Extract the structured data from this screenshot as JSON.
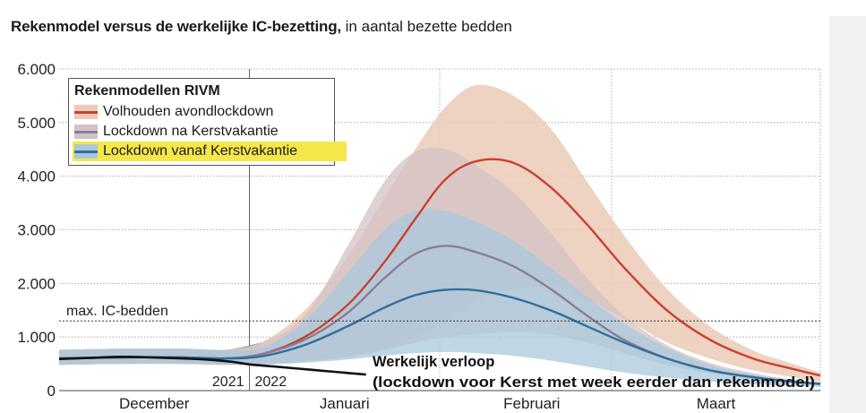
{
  "title_bold": "Rekenmodel versus de werkelijke IC-bezetting,",
  "title_rest": "in aantal bezette bedden",
  "colors": {
    "volhouden": "#c9412e",
    "volhouden_band": "#ebcab7",
    "kerst_na": "#8a7e94",
    "kerst_na_band": "#d3c3c6",
    "kerst_vanaf": "#2f6f9d",
    "kerst_vanaf_band": "#aac8dc",
    "actual": "#111111",
    "highlight": "#f5e64a"
  },
  "legend": {
    "title": "Rekenmodellen RIVM",
    "items": [
      {
        "label": "Volhouden avondlockdown",
        "color": "#c9412e",
        "band": "#ebcab7",
        "highlight": false
      },
      {
        "label": "Lockdown na Kerstvakantie",
        "color": "#8a7e94",
        "band": "#d3c3c6",
        "highlight": false
      },
      {
        "label": "Lockdown vanaf Kerstvakantie",
        "color": "#2f6f9d",
        "band": "#aac8dc",
        "highlight": true
      }
    ]
  },
  "annotations": {
    "max_beds_label": "max. IC-bedden",
    "year_left": "2021",
    "year_right": "2022",
    "actual_title": "Werkelijk verloop",
    "actual_subtitle": "(lockdown voor Kerst met week eerder dan rekenmodel)"
  },
  "chart_data": {
    "type": "area",
    "title": "Rekenmodel versus de werkelijke IC-bezetting, in aantal bezette bedden",
    "xlabel": "",
    "ylabel": "",
    "x_unit": "days since 1 December 2021",
    "xlim": [
      0,
      124
    ],
    "ylim": [
      0,
      6000
    ],
    "y_ticks": [
      0,
      1000,
      2000,
      3000,
      4000,
      5000,
      6000
    ],
    "y_tick_labels": [
      "0",
      "1.000",
      "2.000",
      "3.000",
      "4.000",
      "5.000",
      "6.000"
    ],
    "month_labels": [
      {
        "label": "December",
        "x": 15.5
      },
      {
        "label": "Januari",
        "x": 46.5
      },
      {
        "label": "Februari",
        "x": 77
      },
      {
        "label": "Maart",
        "x": 107
      }
    ],
    "month_boundaries": [
      31,
      62,
      90
    ],
    "grid": true,
    "reference_line": {
      "name": "max. IC-bedden",
      "y": 1300
    },
    "series": [
      {
        "name": "Volhouden avondlockdown",
        "x": [
          0,
          10,
          20,
          27,
          33,
          40,
          47,
          53,
          58,
          63,
          68,
          74,
          80,
          86,
          92,
          99,
          106,
          113,
          119,
          124
        ],
        "y": [
          600,
          620,
          620,
          600,
          680,
          1000,
          1600,
          2400,
          3200,
          3950,
          4280,
          4250,
          3800,
          3100,
          2300,
          1500,
          950,
          600,
          420,
          280
        ],
        "lower": [
          480,
          500,
          500,
          480,
          500,
          560,
          650,
          800,
          1000,
          1300,
          1650,
          1900,
          1950,
          1700,
          1350,
          900,
          600,
          380,
          260,
          160
        ],
        "upper": [
          760,
          780,
          780,
          760,
          900,
          1500,
          2500,
          3600,
          4500,
          5300,
          5700,
          5500,
          4900,
          3900,
          2900,
          1900,
          1200,
          750,
          520,
          340
        ]
      },
      {
        "name": "Lockdown na Kerstvakantie",
        "x": [
          0,
          10,
          20,
          27,
          33,
          40,
          47,
          53,
          58,
          63,
          68,
          74,
          80,
          86,
          92,
          99,
          106,
          113,
          119,
          124
        ],
        "y": [
          600,
          620,
          620,
          600,
          680,
          950,
          1450,
          2100,
          2550,
          2700,
          2580,
          2320,
          1900,
          1400,
          950,
          600,
          380,
          250,
          170,
          120
        ],
        "lower": [
          480,
          500,
          500,
          480,
          500,
          540,
          620,
          750,
          900,
          1000,
          1050,
          1100,
          1050,
          900,
          700,
          480,
          320,
          210,
          150,
          100
        ],
        "upper": [
          760,
          780,
          780,
          760,
          900,
          1400,
          2700,
          3900,
          4450,
          4500,
          4200,
          3700,
          2950,
          2100,
          1400,
          850,
          520,
          330,
          210,
          150
        ]
      },
      {
        "name": "Lockdown vanaf Kerstvakantie",
        "x": [
          0,
          10,
          20,
          27,
          33,
          40,
          47,
          53,
          58,
          63,
          68,
          74,
          80,
          86,
          92,
          99,
          106,
          113,
          119,
          124
        ],
        "y": [
          600,
          620,
          620,
          600,
          640,
          850,
          1200,
          1550,
          1780,
          1880,
          1870,
          1730,
          1500,
          1200,
          900,
          600,
          380,
          250,
          170,
          130
        ],
        "lower": [
          480,
          500,
          500,
          480,
          480,
          520,
          580,
          650,
          700,
          720,
          700,
          650,
          560,
          450,
          340,
          240,
          170,
          120,
          90,
          70
        ],
        "upper": [
          760,
          780,
          780,
          760,
          800,
          1300,
          2200,
          3000,
          3350,
          3350,
          3150,
          2800,
          2300,
          1750,
          1250,
          800,
          480,
          300,
          200,
          150
        ]
      },
      {
        "name": "Werkelijk verloop",
        "x": [
          0,
          5,
          10,
          15,
          20,
          24,
          28,
          31,
          35,
          39,
          43,
          47,
          50
        ],
        "y": [
          590,
          610,
          630,
          620,
          600,
          580,
          540,
          490,
          450,
          410,
          370,
          330,
          300
        ]
      }
    ]
  }
}
